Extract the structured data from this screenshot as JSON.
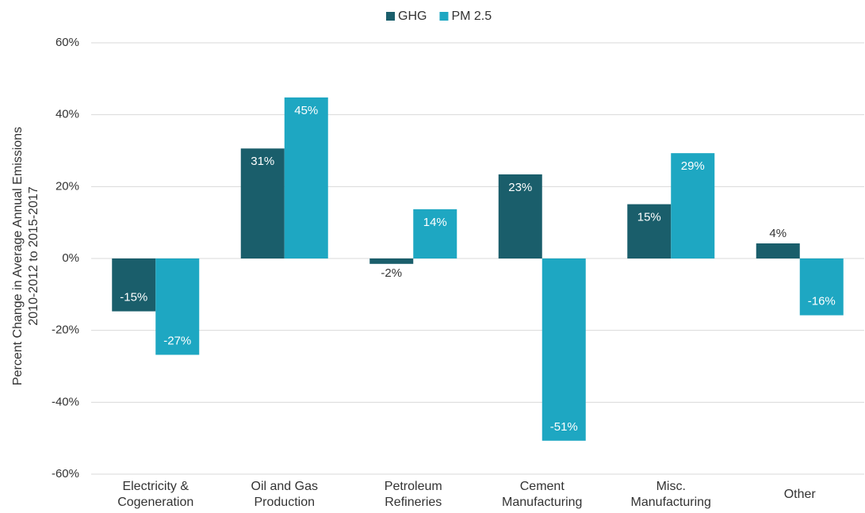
{
  "chart_data": {
    "type": "bar",
    "y_label": "Percent Change in Average Annual Emissions\n2010-2012 to 2015-2017",
    "categories": [
      "Electricity &\nCogeneration",
      "Oil and Gas\nProduction",
      "Petroleum\nRefineries",
      "Cement\nManufacturing",
      "Misc.\nManufacturing",
      "Other"
    ],
    "series": [
      {
        "name": "GHG",
        "color": "#1a5e6b",
        "values": [
          -14.7,
          30.6,
          -1.5,
          23.4,
          15.1,
          4.2
        ],
        "value_labels": [
          "-15%",
          "31%",
          "-2%",
          "23%",
          "15%",
          "4%"
        ]
      },
      {
        "name": "PM 2.5",
        "color": "#1ea7c2",
        "values": [
          -26.8,
          44.8,
          13.7,
          -50.7,
          29.3,
          -15.8
        ],
        "value_labels": [
          "-27%",
          "45%",
          "14%",
          "-51%",
          "29%",
          "-16%"
        ]
      }
    ],
    "ylim": [
      -60,
      60
    ],
    "yticks": [
      {
        "value": -60,
        "label": "-60%"
      },
      {
        "value": -40,
        "label": "-40%"
      },
      {
        "value": -20,
        "label": "-20%"
      },
      {
        "value": 0,
        "label": "0%"
      },
      {
        "value": 20,
        "label": "20%"
      },
      {
        "value": 40,
        "label": "40%"
      },
      {
        "value": 60,
        "label": "60%"
      }
    ],
    "grid": true,
    "legend": "top"
  }
}
